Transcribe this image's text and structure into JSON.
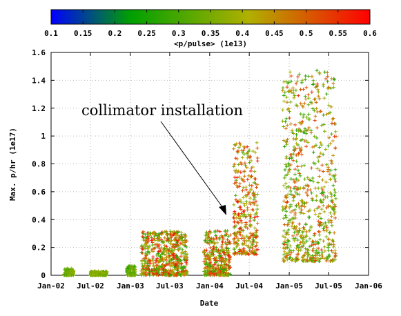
{
  "chart_data": {
    "type": "scatter",
    "marker": "+",
    "xlabel": "Date",
    "ylabel": "Max. p/hr (1e17)",
    "colorbar": {
      "label": "<p/pulse> (1e13)",
      "min": 0.1,
      "max": 0.6,
      "tick_labels": [
        "0.1",
        "0.15",
        "0.2",
        "0.25",
        "0.3",
        "0.35",
        "0.4",
        "0.45",
        "0.5",
        "0.55",
        "0.6"
      ],
      "colors": [
        "#0000ff",
        "#00a000",
        "#b0b000",
        "#ff0000"
      ]
    },
    "xlim": [
      "2002-01-01",
      "2006-01-01"
    ],
    "x_tick_labels": [
      "Jan-02",
      "Jul-02",
      "Jan-03",
      "Jul-03",
      "Jan-04",
      "Jul-04",
      "Jan-05",
      "Jul-05",
      "Jan-06"
    ],
    "ylim": [
      0,
      1.6
    ],
    "y_tick_labels": [
      "0",
      "0.2",
      "0.4",
      "0.6",
      "0.8",
      "1",
      "1.2",
      "1.4",
      "1.6"
    ],
    "grid": true,
    "annotation": {
      "text": "collimator installation",
      "points_to": "2004-05"
    },
    "clusters": [
      {
        "x_start": "2002-03-01",
        "x_end": "2002-04-15",
        "y_min": 0.0,
        "y_max": 0.05,
        "c_min": 0.3,
        "c_max": 0.4
      },
      {
        "x_start": "2002-07-01",
        "x_end": "2002-09-15",
        "y_min": 0.0,
        "y_max": 0.03,
        "c_min": 0.32,
        "c_max": 0.4
      },
      {
        "x_start": "2002-12-15",
        "x_end": "2003-01-25",
        "y_min": 0.0,
        "y_max": 0.07,
        "c_min": 0.28,
        "c_max": 0.38
      },
      {
        "x_start": "2003-02-20",
        "x_end": "2003-09-20",
        "y_min": 0.0,
        "y_max": 0.32,
        "c_min": 0.25,
        "c_max": 0.6
      },
      {
        "x_start": "2003-12-05",
        "x_end": "2004-04-05",
        "y_min": 0.0,
        "y_max": 0.32,
        "c_min": 0.25,
        "c_max": 0.58
      },
      {
        "x_start": "2004-04-20",
        "x_end": "2004-08-10",
        "y_min": 0.15,
        "y_max": 0.97,
        "c_min": 0.3,
        "c_max": 0.6
      },
      {
        "x_start": "2004-12-01",
        "x_end": "2005-08-05",
        "y_min": 0.1,
        "y_max": 1.48,
        "c_min": 0.25,
        "c_max": 0.55
      }
    ]
  }
}
